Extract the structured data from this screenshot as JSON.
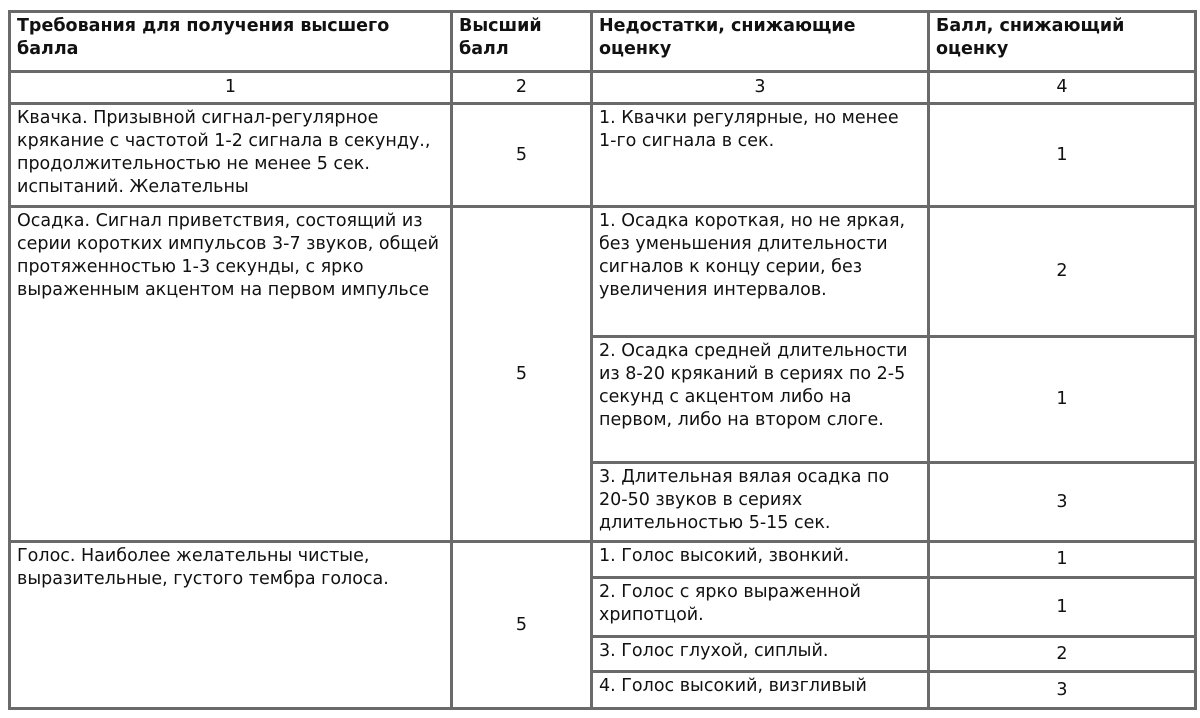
{
  "headers": [
    "Требования для получения высшего балла",
    "Высший балл",
    "Недостатки, снижающие оценку",
    "Балл, снижающий оценку"
  ],
  "column_numbers": [
    "1",
    "2",
    "3",
    "4"
  ],
  "rows": [
    {
      "requirement": "Квачка. Призывной сигнал-регулярное крякание с частотой 1-2 сигнала в секунду., продолжительностью не менее 5 сек. испытаний. Желательны",
      "max_score": "5",
      "defects": [
        {
          "text": "1. Квачки регулярные, но менее 1-го сигнала в сек.",
          "score": "1"
        }
      ]
    },
    {
      "requirement": "Осадка. Сигнал приветствия, состоящий из серии коротких импульсов 3-7 звуков, общей протяженностью 1-3 секунды, с ярко выраженным акцентом на первом импульсе",
      "max_score": "5",
      "defects": [
        {
          "text": "1. Осадка короткая, но не яркая, без уменьшения длительности сигналов к концу серии, без увеличения интервалов.",
          "score": "2"
        },
        {
          "text": "2. Осадка средней длительности из 8-20 кряканий в сериях по 2-5 секунд с акцентом либо на первом, либо на втором слоге.",
          "score": "1"
        },
        {
          "text": "3. Длительная вялая осадка по 20-50 звуков в сериях длительностью 5-15 сек.",
          "score": "3"
        }
      ]
    },
    {
      "requirement": "Голос. Наиболее желательны чистые, выразительные, густого тембра голоса.",
      "max_score": "5",
      "defects": [
        {
          "text": "1. Голос высокий, звонкий.",
          "score": "1"
        },
        {
          "text": "2. Голос с ярко выраженной хрипотцой.",
          "score": "1"
        },
        {
          "text": "3. Голос глухой, сиплый.",
          "score": "2"
        },
        {
          "text": "4. Голос высокий, визгливый",
          "score": "3"
        }
      ]
    }
  ]
}
